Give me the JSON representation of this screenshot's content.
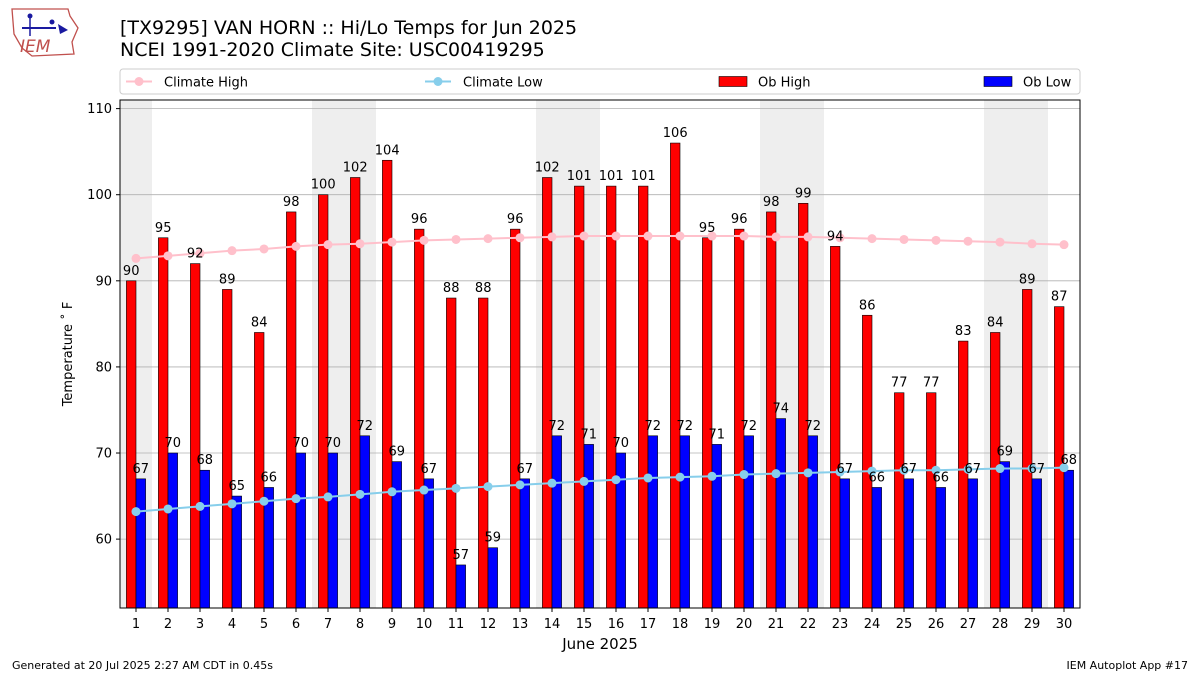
{
  "header": {
    "title_line1": "[TX9295] VAN HORN :: Hi/Lo Temps for Jun 2025",
    "title_line2": "NCEI 1991-2020 Climate Site: USC00419295",
    "logo_text": "IEM"
  },
  "footer": {
    "generated": "Generated at 20 Jul 2025 2:27 AM CDT in 0.45s",
    "app": "IEM Autoplot App #17"
  },
  "colors": {
    "ob_high": "#ff0000",
    "ob_low": "#0000ff",
    "climate_high": "#ffc0cb",
    "climate_low": "#87ceeb",
    "weekend_shade": "#eeeeee",
    "grid": "#b0b0b0"
  },
  "chart_data": {
    "type": "bar",
    "xlabel": "June 2025",
    "ylabel": "Temperature ˚ F",
    "ylim": [
      52,
      111
    ],
    "yticks": [
      60,
      70,
      80,
      90,
      100,
      110
    ],
    "grid": "horizontal",
    "legend_position": "top, above plot",
    "categories": [
      "1",
      "2",
      "3",
      "4",
      "5",
      "6",
      "7",
      "8",
      "9",
      "10",
      "11",
      "12",
      "13",
      "14",
      "15",
      "16",
      "17",
      "18",
      "19",
      "20",
      "21",
      "22",
      "23",
      "24",
      "25",
      "26",
      "27",
      "28",
      "29",
      "30"
    ],
    "shaded_days": [
      1,
      7,
      8,
      14,
      15,
      21,
      22,
      28,
      29
    ],
    "series": [
      {
        "name": "Climate High",
        "kind": "line",
        "values": [
          92.6,
          92.9,
          93.2,
          93.5,
          93.7,
          94.0,
          94.2,
          94.3,
          94.5,
          94.7,
          94.8,
          94.9,
          95.0,
          95.1,
          95.2,
          95.2,
          95.2,
          95.2,
          95.2,
          95.2,
          95.1,
          95.1,
          95.0,
          94.9,
          94.8,
          94.7,
          94.6,
          94.5,
          94.3,
          94.2
        ]
      },
      {
        "name": "Climate Low",
        "kind": "line",
        "values": [
          63.2,
          63.5,
          63.8,
          64.1,
          64.4,
          64.7,
          64.9,
          65.2,
          65.5,
          65.7,
          65.9,
          66.1,
          66.3,
          66.5,
          66.7,
          66.9,
          67.1,
          67.2,
          67.3,
          67.5,
          67.6,
          67.7,
          67.8,
          67.9,
          68.0,
          68.0,
          68.1,
          68.2,
          68.2,
          68.3
        ]
      },
      {
        "name": "Ob High",
        "kind": "bar",
        "values": [
          90,
          95,
          92,
          89,
          84,
          98,
          100,
          102,
          104,
          96,
          88,
          88,
          96,
          102,
          101,
          101,
          101,
          106,
          95,
          96,
          98,
          99,
          94,
          86,
          77,
          77,
          83,
          84,
          89,
          87
        ]
      },
      {
        "name": "Ob Low",
        "kind": "bar",
        "values": [
          67,
          70,
          68,
          65,
          66,
          70,
          70,
          72,
          69,
          67,
          57,
          59,
          67,
          72,
          71,
          70,
          72,
          72,
          71,
          72,
          74,
          72,
          67,
          66,
          67,
          66,
          67,
          69,
          67,
          68
        ]
      }
    ]
  }
}
